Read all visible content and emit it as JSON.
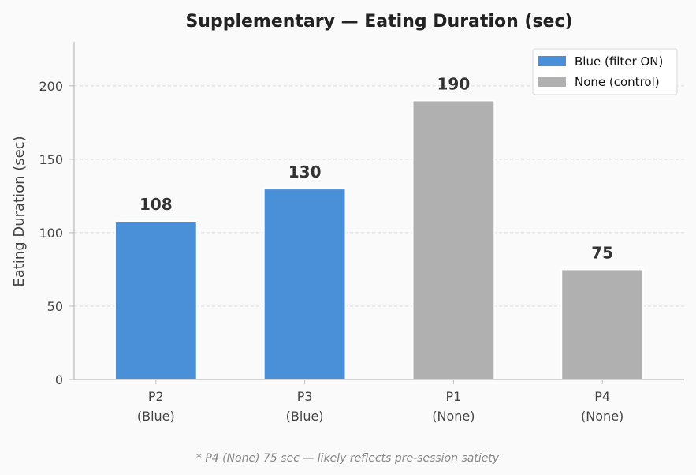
{
  "chart_data": {
    "type": "bar",
    "title": "Supplementary — Eating Duration (sec)",
    "ylabel": "Eating Duration (sec)",
    "xlabel": "",
    "ylim": [
      0,
      230
    ],
    "yticks": [
      0,
      50,
      100,
      150,
      200
    ],
    "grid": "y-dashed",
    "legend_position": "top-right",
    "categories": [
      {
        "label": "P2",
        "group_label": "(Blue)",
        "value": 108,
        "series": "blue"
      },
      {
        "label": "P3",
        "group_label": "(Blue)",
        "value": 130,
        "series": "blue"
      },
      {
        "label": "P1",
        "group_label": "(None)",
        "value": 190,
        "series": "none"
      },
      {
        "label": "P4",
        "group_label": "(None)",
        "value": 75,
        "series": "none"
      }
    ],
    "legend": [
      {
        "key": "blue",
        "name": "Blue (filter ON)",
        "color": "#4a90d9"
      },
      {
        "key": "none",
        "name": "None (control)",
        "color": "#b0b0b0"
      }
    ],
    "footnote": "* P4 (None) 75 sec — likely reflects pre-session satiety"
  }
}
